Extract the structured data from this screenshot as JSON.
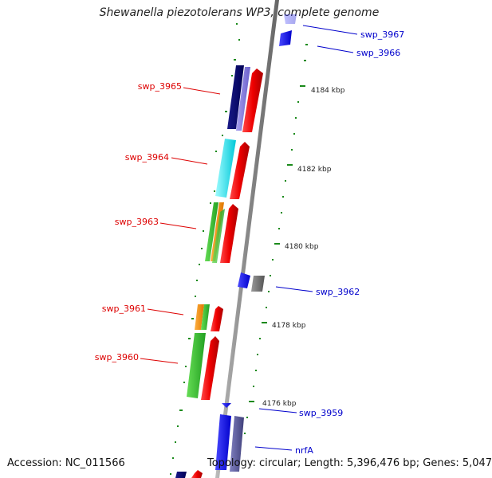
{
  "title": "Shewanella piezotolerans WP3, complete genome",
  "footer": {
    "accession": "Accession: NC_011566",
    "summary": "Topology: circular; Length: 5,396,476 bp; Genes: 5,047"
  },
  "colors": {
    "backbone": "#888888",
    "ticks": "#1a8a1a",
    "label_red": "#dd0000",
    "label_blue": "#0000cc"
  },
  "kbp_labels": [
    "4184 kbp",
    "4182 kbp",
    "4180 kbp",
    "4178 kbp",
    "4176 kbp"
  ],
  "gene_labels": {
    "swp_3967": "swp_3967",
    "swp_3966": "swp_3966",
    "swp_3965": "swp_3965",
    "swp_3964": "swp_3964",
    "swp_3963": "swp_3963",
    "swp_3962": "swp_3962",
    "swp_3961": "swp_3961",
    "swp_3960": "swp_3960",
    "swp_3959": "swp_3959",
    "nrfA": "nrfA"
  }
}
